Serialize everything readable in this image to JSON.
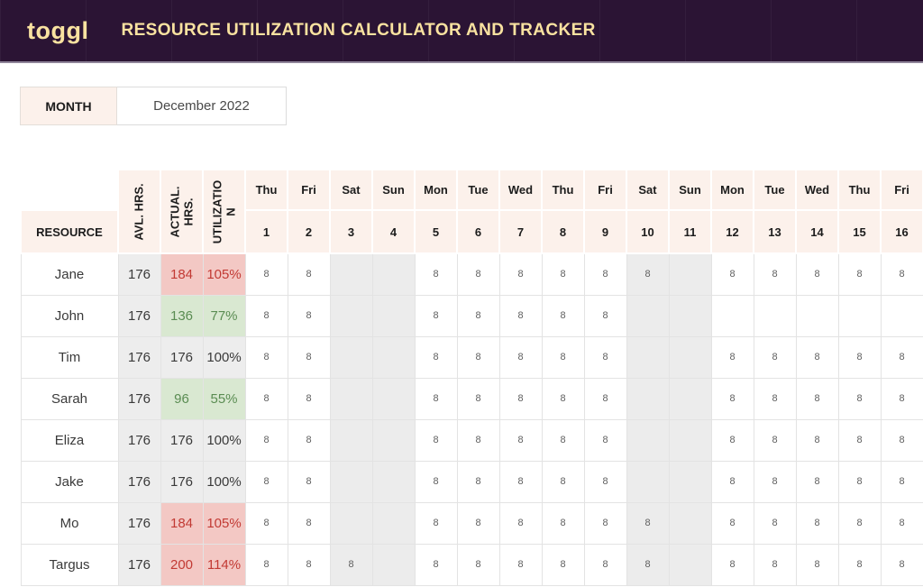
{
  "header": {
    "logo": "toggl",
    "title": "RESOURCE UTILIZATION CALCULATOR AND TRACKER"
  },
  "month_selector": {
    "label": "MONTH",
    "value": "December 2022"
  },
  "table": {
    "resource_header": "RESOURCE",
    "stat_headers": [
      "AVL. HRS.",
      "ACTUAL. HRS.",
      "UTILIZATION"
    ],
    "day_names": [
      "Thu",
      "Fri",
      "Sat",
      "Sun",
      "Mon",
      "Tue",
      "Wed",
      "Thu",
      "Fri",
      "Sat",
      "Sun",
      "Mon",
      "Tue",
      "Wed",
      "Thu",
      "Fri"
    ],
    "day_numbers": [
      "1",
      "2",
      "3",
      "4",
      "5",
      "6",
      "7",
      "8",
      "9",
      "10",
      "11",
      "12",
      "13",
      "14",
      "15",
      "16"
    ],
    "rows": [
      {
        "name": "Jane",
        "avl": "176",
        "actual": "184",
        "utilization": "105%",
        "status": "over",
        "days": [
          "8",
          "8",
          "",
          "",
          "8",
          "8",
          "8",
          "8",
          "8",
          "8",
          "",
          "8",
          "8",
          "8",
          "8",
          "8"
        ]
      },
      {
        "name": "John",
        "avl": "176",
        "actual": "136",
        "utilization": "77%",
        "status": "under",
        "days": [
          "8",
          "8",
          "",
          "",
          "8",
          "8",
          "8",
          "8",
          "8",
          "",
          "",
          "",
          "",
          "",
          "",
          ""
        ]
      },
      {
        "name": "Tim",
        "avl": "176",
        "actual": "176",
        "utilization": "100%",
        "status": "full",
        "days": [
          "8",
          "8",
          "",
          "",
          "8",
          "8",
          "8",
          "8",
          "8",
          "",
          "",
          "8",
          "8",
          "8",
          "8",
          "8"
        ]
      },
      {
        "name": "Sarah",
        "avl": "176",
        "actual": "96",
        "utilization": "55%",
        "status": "under",
        "days": [
          "8",
          "8",
          "",
          "",
          "8",
          "8",
          "8",
          "8",
          "8",
          "",
          "",
          "8",
          "8",
          "8",
          "8",
          "8"
        ]
      },
      {
        "name": "Eliza",
        "avl": "176",
        "actual": "176",
        "utilization": "100%",
        "status": "full",
        "days": [
          "8",
          "8",
          "",
          "",
          "8",
          "8",
          "8",
          "8",
          "8",
          "",
          "",
          "8",
          "8",
          "8",
          "8",
          "8"
        ]
      },
      {
        "name": "Jake",
        "avl": "176",
        "actual": "176",
        "utilization": "100%",
        "status": "full",
        "days": [
          "8",
          "8",
          "",
          "",
          "8",
          "8",
          "8",
          "8",
          "8",
          "",
          "",
          "8",
          "8",
          "8",
          "8",
          "8"
        ]
      },
      {
        "name": "Mo",
        "avl": "176",
        "actual": "184",
        "utilization": "105%",
        "status": "over",
        "days": [
          "8",
          "8",
          "",
          "",
          "8",
          "8",
          "8",
          "8",
          "8",
          "8",
          "",
          "8",
          "8",
          "8",
          "8",
          "8"
        ]
      },
      {
        "name": "Targus",
        "avl": "176",
        "actual": "200",
        "utilization": "114%",
        "status": "over",
        "days": [
          "8",
          "8",
          "8",
          "",
          "8",
          "8",
          "8",
          "8",
          "8",
          "8",
          "",
          "8",
          "8",
          "8",
          "8",
          "8"
        ]
      }
    ]
  },
  "colors": {
    "header_bg": "#2b1434",
    "header_text": "#f9e2a0",
    "header_cell_bg": "#fcf1eb",
    "weekend_cell_bg": "#ececec",
    "neutral_bg": "#ededed",
    "over_bg": "#f3c8c4",
    "over_text": "#c23a34",
    "under_bg": "#d9e8d1",
    "under_text": "#5a8c52",
    "border": "#e3e3e3"
  }
}
